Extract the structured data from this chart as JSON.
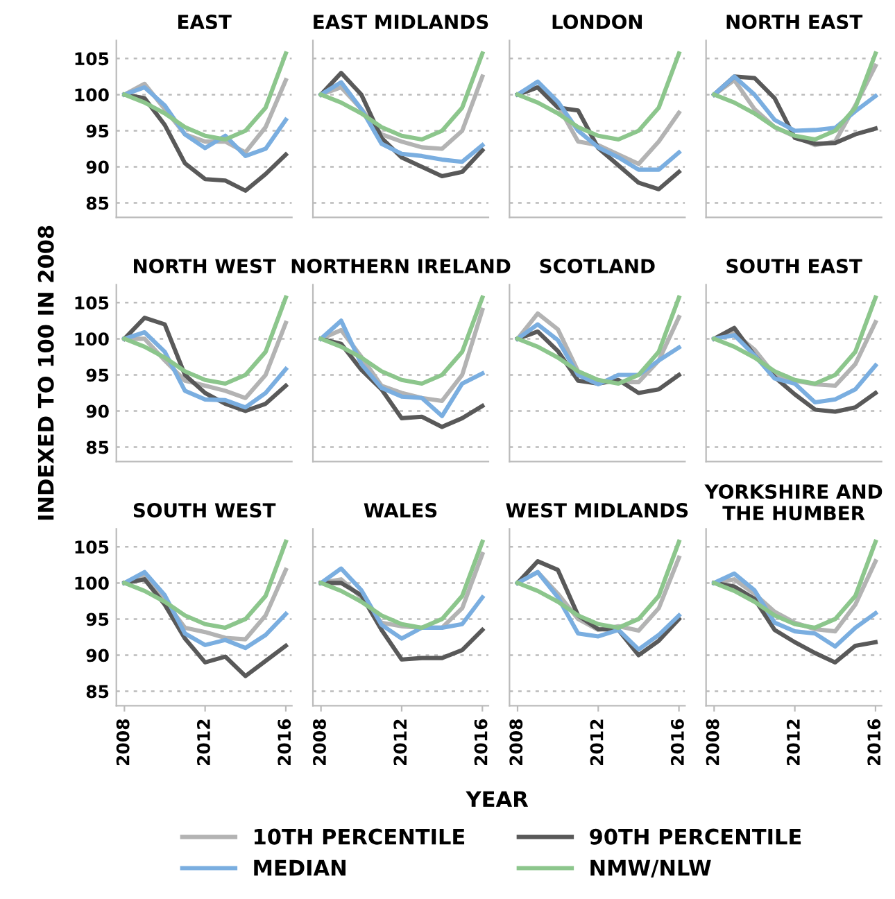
{
  "chart_data": [
    {
      "type": "line",
      "title": "EAST",
      "legend": "bottom",
      "x": [
        2008,
        2009,
        2010,
        2011,
        2012,
        2013,
        2014,
        2015,
        2016
      ],
      "xlim": [
        2007.6,
        2016.3
      ],
      "ylim": [
        83,
        107.5
      ],
      "yticks": [
        85,
        90,
        95,
        100,
        105
      ],
      "grid": "y",
      "tick_labels": "y",
      "series": [
        {
          "name": "10TH PERCENTILE",
          "color": "#b3b3b3",
          "values": [
            100,
            101.5,
            98,
            94.5,
            93.5,
            93.5,
            92,
            95.5,
            102
          ]
        },
        {
          "name": "90TH PERCENTILE",
          "color": "#595959",
          "values": [
            100,
            99.5,
            95.8,
            90.5,
            88.3,
            88.1,
            86.7,
            89,
            91.7
          ]
        },
        {
          "name": "MEDIAN",
          "color": "#7aaee0",
          "values": [
            100,
            101,
            98.5,
            94.5,
            92.6,
            94.3,
            91.5,
            92.5,
            96.5
          ]
        },
        {
          "name": "NMW/NLW",
          "color": "#8cc68c",
          "values": [
            100,
            98.9,
            97.4,
            95.5,
            94.3,
            93.8,
            95,
            98.2,
            105.7
          ]
        }
      ]
    },
    {
      "type": "line",
      "title": "EAST MIDLANDS",
      "x": [
        2008,
        2009,
        2010,
        2011,
        2012,
        2013,
        2014,
        2015,
        2016
      ],
      "xlim": [
        2007.6,
        2016.3
      ],
      "ylim": [
        83,
        107.5
      ],
      "grid": "y",
      "tick_labels": false,
      "series": [
        {
          "color": "#b3b3b3",
          "values": [
            100,
            101,
            98,
            94.5,
            93.5,
            92.7,
            92.5,
            95,
            102.5
          ]
        },
        {
          "color": "#595959",
          "values": [
            100,
            103,
            100,
            94,
            91.3,
            90,
            88.7,
            89.3,
            92.3
          ]
        },
        {
          "color": "#7aaee0",
          "values": [
            100,
            101.7,
            98,
            93.2,
            91.8,
            91.5,
            91,
            90.7,
            93
          ]
        },
        {
          "color": "#8cc68c",
          "values": [
            100,
            98.9,
            97.4,
            95.5,
            94.3,
            93.8,
            95,
            98.2,
            105.7
          ]
        }
      ]
    },
    {
      "type": "line",
      "title": "LONDON",
      "x": [
        2008,
        2009,
        2010,
        2011,
        2012,
        2013,
        2014,
        2015,
        2016
      ],
      "xlim": [
        2007.6,
        2016.3
      ],
      "ylim": [
        83,
        107.5
      ],
      "grid": "y",
      "tick_labels": false,
      "series": [
        {
          "color": "#b3b3b3",
          "values": [
            100,
            101,
            98.5,
            93.5,
            93,
            91.7,
            90.4,
            93.5,
            97.5
          ]
        },
        {
          "color": "#595959",
          "values": [
            100,
            101,
            98.2,
            97.8,
            92.6,
            90.2,
            87.8,
            86.9,
            89.3
          ]
        },
        {
          "color": "#7aaee0",
          "values": [
            100,
            101.8,
            99,
            95,
            92.7,
            91.3,
            89.6,
            89.6,
            92
          ]
        },
        {
          "color": "#8cc68c",
          "values": [
            100,
            98.9,
            97.4,
            95.5,
            94.3,
            93.8,
            95,
            98.2,
            105.7
          ]
        }
      ]
    },
    {
      "type": "line",
      "title": "NORTH EAST",
      "x": [
        2008,
        2009,
        2010,
        2011,
        2012,
        2013,
        2014,
        2015,
        2016
      ],
      "xlim": [
        2007.6,
        2016.3
      ],
      "ylim": [
        83,
        107.5
      ],
      "grid": "y",
      "tick_labels": false,
      "series": [
        {
          "color": "#b3b3b3",
          "values": [
            100,
            102,
            98,
            95.5,
            94.2,
            93,
            93.5,
            98.5,
            104
          ]
        },
        {
          "color": "#595959",
          "values": [
            100,
            102.5,
            102.3,
            99.5,
            94,
            93.2,
            93.3,
            94.5,
            95.3
          ]
        },
        {
          "color": "#7aaee0",
          "values": [
            100,
            102.5,
            100,
            96.5,
            95,
            95.1,
            95.4,
            97.7,
            99.8
          ]
        },
        {
          "color": "#8cc68c",
          "values": [
            100,
            98.9,
            97.4,
            95.5,
            94.3,
            93.8,
            95,
            98.2,
            105.7
          ]
        }
      ]
    },
    {
      "type": "line",
      "title": "NORTH WEST",
      "ylabel": "INDEXED TO 100 IN 2008",
      "x": [
        2008,
        2009,
        2010,
        2011,
        2012,
        2013,
        2014,
        2015,
        2016
      ],
      "xlim": [
        2007.6,
        2016.3
      ],
      "ylim": [
        83,
        107.5
      ],
      "yticks": [
        85,
        90,
        95,
        100,
        105
      ],
      "grid": "y",
      "tick_labels": "y",
      "series": [
        {
          "color": "#b3b3b3",
          "values": [
            100,
            100,
            97,
            94.2,
            93.5,
            92.8,
            91.8,
            95,
            102.2
          ]
        },
        {
          "color": "#595959",
          "values": [
            100,
            102.9,
            102,
            95,
            92.5,
            91,
            90,
            91,
            93.5
          ]
        },
        {
          "color": "#7aaee0",
          "values": [
            100,
            100.9,
            98.2,
            92.8,
            91.6,
            91.5,
            90.5,
            92.5,
            95.8
          ]
        },
        {
          "color": "#8cc68c",
          "values": [
            100,
            98.9,
            97.4,
            95.5,
            94.3,
            93.8,
            95,
            98.2,
            105.7
          ]
        }
      ]
    },
    {
      "type": "line",
      "title": "NORTHERN IRELAND",
      "x": [
        2008,
        2009,
        2010,
        2011,
        2012,
        2013,
        2014,
        2015,
        2016
      ],
      "xlim": [
        2007.6,
        2016.3
      ],
      "ylim": [
        83,
        107.5
      ],
      "grid": "y",
      "tick_labels": false,
      "series": [
        {
          "color": "#b3b3b3",
          "values": [
            100,
            101.2,
            97.5,
            93.5,
            92.5,
            91.8,
            91.4,
            95,
            104
          ]
        },
        {
          "color": "#595959",
          "values": [
            100,
            99.3,
            95.7,
            93,
            89,
            89.2,
            87.8,
            89,
            90.7
          ]
        },
        {
          "color": "#7aaee0",
          "values": [
            100,
            102.5,
            96.5,
            93.2,
            92,
            91.8,
            89.3,
            93.8,
            95.2
          ]
        },
        {
          "color": "#8cc68c",
          "values": [
            100,
            98.9,
            97.4,
            95.5,
            94.3,
            93.8,
            95,
            98.2,
            105.7
          ]
        }
      ]
    },
    {
      "type": "line",
      "title": "SCOTLAND",
      "x": [
        2008,
        2009,
        2010,
        2011,
        2012,
        2013,
        2014,
        2015,
        2016
      ],
      "xlim": [
        2007.6,
        2016.3
      ],
      "ylim": [
        83,
        107.5
      ],
      "grid": "y",
      "tick_labels": false,
      "series": [
        {
          "color": "#b3b3b3",
          "values": [
            100,
            103.5,
            101.3,
            95.5,
            94.2,
            94,
            94,
            97,
            103
          ]
        },
        {
          "color": "#595959",
          "values": [
            100,
            101,
            98.3,
            94.2,
            93.8,
            94.3,
            92.5,
            93,
            95
          ]
        },
        {
          "color": "#7aaee0",
          "values": [
            100,
            102,
            99.8,
            95,
            93.7,
            95,
            95,
            97,
            98.8
          ]
        },
        {
          "color": "#8cc68c",
          "values": [
            100,
            98.9,
            97.4,
            95.5,
            94.3,
            93.8,
            95,
            98.2,
            105.7
          ]
        }
      ]
    },
    {
      "type": "line",
      "title": "SOUTH EAST",
      "x": [
        2008,
        2009,
        2010,
        2011,
        2012,
        2013,
        2014,
        2015,
        2016
      ],
      "xlim": [
        2007.6,
        2016.3
      ],
      "ylim": [
        83,
        107.5
      ],
      "grid": "y",
      "tick_labels": false,
      "series": [
        {
          "color": "#b3b3b3",
          "values": [
            100,
            100.8,
            98.5,
            95,
            94.2,
            93.7,
            93.5,
            96.5,
            102.3
          ]
        },
        {
          "color": "#595959",
          "values": [
            100,
            101.5,
            97.7,
            94.7,
            92.3,
            90.2,
            89.9,
            90.5,
            92.5
          ]
        },
        {
          "color": "#7aaee0",
          "values": [
            100,
            100.5,
            97.7,
            94.5,
            93.8,
            91.2,
            91.6,
            93,
            96.3
          ]
        },
        {
          "color": "#8cc68c",
          "values": [
            100,
            98.9,
            97.4,
            95.5,
            94.3,
            93.8,
            95,
            98.2,
            105.7
          ]
        }
      ]
    },
    {
      "type": "line",
      "title": "SOUTH WEST",
      "x": [
        2008,
        2009,
        2010,
        2011,
        2012,
        2013,
        2014,
        2015,
        2016
      ],
      "xlim": [
        2007.6,
        2016.3
      ],
      "ylim": [
        83,
        107.5
      ],
      "xticks": [
        2008,
        2012,
        2016
      ],
      "yticks": [
        85,
        90,
        95,
        100,
        105
      ],
      "grid": "y",
      "series": [
        {
          "color": "#b3b3b3",
          "values": [
            100,
            101,
            97.5,
            93.8,
            93.2,
            92.4,
            92.2,
            95.5,
            101.8
          ]
        },
        {
          "color": "#595959",
          "values": [
            100,
            100.5,
            97,
            92.3,
            89,
            89.8,
            87.1,
            89.2,
            91.3
          ]
        },
        {
          "color": "#7aaee0",
          "values": [
            100,
            101.5,
            98.3,
            93,
            91.4,
            92.1,
            91,
            92.8,
            95.7
          ]
        },
        {
          "color": "#8cc68c",
          "values": [
            100,
            98.9,
            97.4,
            95.5,
            94.3,
            93.8,
            95,
            98.2,
            105.7
          ]
        }
      ]
    },
    {
      "type": "line",
      "title": "WALES",
      "xlabel": "YEAR",
      "x": [
        2008,
        2009,
        2010,
        2011,
        2012,
        2013,
        2014,
        2015,
        2016
      ],
      "xlim": [
        2007.6,
        2016.3
      ],
      "ylim": [
        83,
        107.5
      ],
      "xticks": [
        2008,
        2012,
        2016
      ],
      "grid": "y",
      "tick_labels": "x",
      "series": [
        {
          "color": "#b3b3b3",
          "values": [
            100,
            100.5,
            98,
            94.5,
            94,
            93.8,
            93.8,
            96.5,
            104
          ]
        },
        {
          "color": "#595959",
          "values": [
            100,
            100,
            98.3,
            93.5,
            89.4,
            89.6,
            89.6,
            90.7,
            93.5
          ]
        },
        {
          "color": "#7aaee0",
          "values": [
            100,
            102,
            99,
            94.2,
            92.3,
            93.8,
            93.8,
            94.3,
            98
          ]
        },
        {
          "color": "#8cc68c",
          "values": [
            100,
            98.9,
            97.4,
            95.5,
            94.3,
            93.8,
            95,
            98.2,
            105.7
          ]
        }
      ]
    },
    {
      "type": "line",
      "title": "WEST MIDLANDS",
      "x": [
        2008,
        2009,
        2010,
        2011,
        2012,
        2013,
        2014,
        2015,
        2016
      ],
      "xlim": [
        2007.6,
        2016.3
      ],
      "ylim": [
        83,
        107.5
      ],
      "xticks": [
        2008,
        2012,
        2016
      ],
      "grid": "y",
      "tick_labels": "x",
      "series": [
        {
          "color": "#b3b3b3",
          "values": [
            100,
            101.5,
            98.5,
            95,
            93.5,
            94,
            93.4,
            96.5,
            103.5
          ]
        },
        {
          "color": "#595959",
          "values": [
            100,
            103,
            101.8,
            95.5,
            93.6,
            93.5,
            90,
            92,
            95
          ]
        },
        {
          "color": "#7aaee0",
          "values": [
            100,
            101.5,
            98,
            93,
            92.6,
            93.5,
            90.8,
            92.8,
            95.5
          ]
        },
        {
          "color": "#8cc68c",
          "values": [
            100,
            98.9,
            97.4,
            95.5,
            94.3,
            93.8,
            95,
            98.2,
            105.7
          ]
        }
      ]
    },
    {
      "type": "line",
      "title": "YORKSHIRE AND THE HUMBER",
      "x": [
        2008,
        2009,
        2010,
        2011,
        2012,
        2013,
        2014,
        2015,
        2016
      ],
      "xlim": [
        2007.6,
        2016.3
      ],
      "ylim": [
        83,
        107.5
      ],
      "xticks": [
        2008,
        2012,
        2016
      ],
      "grid": "y",
      "tick_labels": "x",
      "series": [
        {
          "color": "#b3b3b3",
          "values": [
            100,
            100.5,
            98.5,
            96,
            94.5,
            93.6,
            93.3,
            97,
            103
          ]
        },
        {
          "color": "#595959",
          "values": [
            100,
            99.5,
            97.8,
            93.5,
            91.8,
            90.3,
            89,
            91.3,
            91.8
          ]
        },
        {
          "color": "#7aaee0",
          "values": [
            100,
            101.3,
            99,
            94.5,
            93.3,
            93,
            91.2,
            93.8,
            95.8
          ]
        },
        {
          "color": "#8cc68c",
          "values": [
            100,
            98.9,
            97.4,
            95.5,
            94.3,
            93.8,
            95,
            98.2,
            105.7
          ]
        }
      ]
    }
  ]
}
